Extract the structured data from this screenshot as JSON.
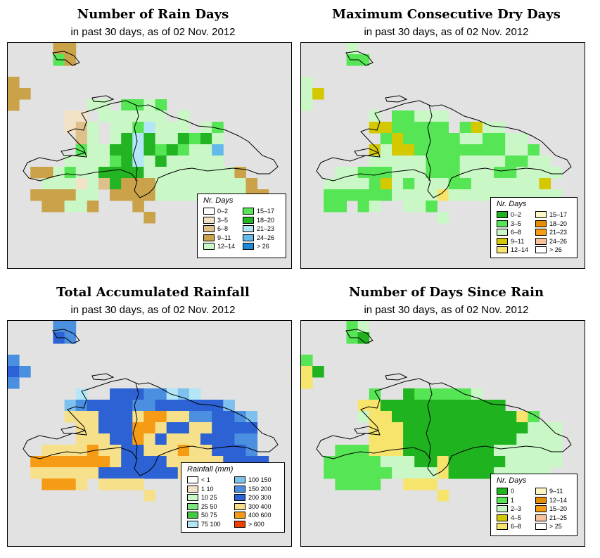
{
  "panels": [
    {
      "title": "Number of Rain Days",
      "subtitle": "in past 30 days, as of  02 Nov. 2012",
      "legend": {
        "title": "Nr. Days",
        "items": [
          {
            "label": "0–2",
            "color": "#ffffff"
          },
          {
            "label": "3–5",
            "color": "#f3e3c6"
          },
          {
            "label": "6–8",
            "color": "#dfc08a"
          },
          {
            "label": "9–11",
            "color": "#c9a24a"
          },
          {
            "label": "12–14",
            "color": "#caf7c6"
          },
          {
            "label": "15–17",
            "color": "#55e555"
          },
          {
            "label": "18–20",
            "color": "#22b422"
          },
          {
            "label": "21–23",
            "color": "#b3e6f6"
          },
          {
            "label": "24–26",
            "color": "#62b9ea"
          },
          {
            "label": "> 26",
            "color": "#1a8ad4"
          }
        ]
      }
    },
    {
      "title": "Maximum Consecutive Dry Days",
      "subtitle": "in past 30 days, as of  02 Nov. 2012",
      "legend": {
        "title": "Nr. Days",
        "items": [
          {
            "label": "0–2",
            "color": "#1fb41f"
          },
          {
            "label": "3–5",
            "color": "#55e555"
          },
          {
            "label": "6–8",
            "color": "#caf7c6"
          },
          {
            "label": "9–11",
            "color": "#d4c800"
          },
          {
            "label": "12–14",
            "color": "#f7e46c"
          },
          {
            "label": "15–17",
            "color": "#fcf6c4"
          },
          {
            "label": "18–20",
            "color": "#e38d00"
          },
          {
            "label": "21–23",
            "color": "#f59b14"
          },
          {
            "label": "24–26",
            "color": "#f7c19a"
          },
          {
            "label": "> 26",
            "color": "#ffffff"
          }
        ]
      }
    },
    {
      "title": "Total Accumulated Rainfall",
      "subtitle": "in past 30 days, as of  02 Nov. 2012",
      "legend": {
        "title": "Rainfall (mm)",
        "items": [
          {
            "label": "< 1",
            "color": "#ffffff"
          },
          {
            "label": "1   10",
            "color": "#f3e3c6"
          },
          {
            "label": "10   25",
            "color": "#caf7c6"
          },
          {
            "label": "25   50",
            "color": "#7ee57e"
          },
          {
            "label": "50   75",
            "color": "#44c844"
          },
          {
            "label": "75  100",
            "color": "#b3e6f6"
          },
          {
            "label": "100  150",
            "color": "#7ec1ee"
          },
          {
            "label": "150  200",
            "color": "#4a8fe0"
          },
          {
            "label": "200  300",
            "color": "#2c62d4"
          },
          {
            "label": "300  400",
            "color": "#f7e08a"
          },
          {
            "label": "400  600",
            "color": "#f59b14"
          },
          {
            "label": "> 600",
            "color": "#f24000"
          }
        ]
      }
    },
    {
      "title": "Number of Days Since Rain",
      "subtitle": "in past 30 days, as of  02 Nov. 2012",
      "legend": {
        "title": "Nr. Days",
        "items": [
          {
            "label": "0",
            "color": "#1fb41f"
          },
          {
            "label": "1",
            "color": "#55e555"
          },
          {
            "label": "2–3",
            "color": "#caf7c6"
          },
          {
            "label": "4–5",
            "color": "#d4c800"
          },
          {
            "label": "6–8",
            "color": "#f7e46c"
          },
          {
            "label": "9–11",
            "color": "#fcf6c4"
          },
          {
            "label": "12–14",
            "color": "#e38d00"
          },
          {
            "label": "15–20",
            "color": "#f59b14"
          },
          {
            "label": "21–25",
            "color": "#f7c19a"
          },
          {
            "label": "> 25",
            "color": "#ffffff"
          }
        ]
      }
    }
  ],
  "grids": {
    "rain_days": {
      "cols": 25,
      "rows": 20,
      "palette": {
        "a": "#caf7c6",
        "b": "#55e555",
        "c": "#22b422",
        "d": "#c9a24a",
        "e": "#dfc08a",
        "f": "#f3e3c6",
        "g": "#b3e6f6",
        "h": "#62b9ea"
      },
      "cells": [
        "....dd..................",
        "....bd..................",
        "........................",
        "d.......................",
        "dd......................",
        "d......aa.bbab..........",
        ".....ff.aaaaaa.a........",
        ".....fea.aabgaaa.ab.....",
        "......ea.acgcaacbca.....",
        "......baaccgcbcbaah.....",
        ".....aaaabcgacaaaaa.....",
        "..ddabaaccccaaaaaaaad...",
        "...aaafaecdddaaaaaaaad..",
        "..ddddaa.ddddaaaaaaaadd.",
        "...ddaad...d............",
        "............d..........."
      ]
    },
    "dry_days": {
      "cols": 25,
      "rows": 20,
      "palette": {
        "a": "#caf7c6",
        "b": "#55e555",
        "c": "#1fb41f",
        "d": "#d4c800",
        "e": "#f7e46c"
      },
      "cells": [
        "....a...................",
        "....bb..................",
        "........................",
        "a.......................",
        "ad......................",
        "a.......................",
        "......a.bbaaa...........",
        "......ddbbbbb.bdaa......",
        ".......bdbbbbbaabbaa....",
        "......daddbbbbbbbbaab...",
        "......aaaaabbbaaaabbaa..",
        "...aabbbaaabbbaaabbaaaa.",
        "..aaaabdabaaabbaaaaaad..",
        "..bbbbbbaaaaeaaaaaaaaaa.",
        "..bb.ba..aab............",
        "............a..........."
      ]
    },
    "rainfall": {
      "cols": 25,
      "rows": 20,
      "palette": {
        "a": "#2c62d4",
        "b": "#4a8fe0",
        "c": "#7ec1ee",
        "d": "#f7e08a",
        "e": "#f59b14",
        "f": "#b3e6f6"
      },
      "cells": [
        "....bb..................",
        "....ab..................",
        "........................",
        "b.......................",
        "ab......................",
        "b.......................",
        "......f..aaabbfcf.......",
        ".....cbaaaabbaaaaaac....",
        ".....dddaaadeeddbbaabc..",
        "......ddaaaeedaaddaaaa..",
        "......dddaaedadddaaabb..",
        "...ddddeddaadddeddaaab..",
        "..eeeeeeedaaaadddddaaaa.",
        "..ddddddaaaaaaadddddaa..",
        "...eeed.dddd............",
        "............d..........."
      ]
    },
    "since_rain": {
      "cols": 25,
      "rows": 20,
      "palette": {
        "a": "#1fb41f",
        "b": "#55e555",
        "c": "#caf7c6",
        "d": "#d4c800",
        "e": "#f7e46c"
      },
      "cells": [
        "....bc..................",
        "....ba..................",
        "........................",
        "b.......................",
        "ea......................",
        "e.......................",
        "......b..abbbbbc........",
        ".....eeaaaaaaaaaaa......",
        ".....ceeaaaaaaaaaaaeb...",
        "......eeeaaaaaaaaaaaccc.",
        "......eeeaaaaaaaaaacccc.",
        "...bbbeeeaaaaaaaacccccc.",
        "..bbbbbcccaaeaaaaaccccc.",
        "..bbbbbbcccceaaaaccccc..",
        "...bbbb..eee............",
        "............e..........."
      ]
    }
  }
}
